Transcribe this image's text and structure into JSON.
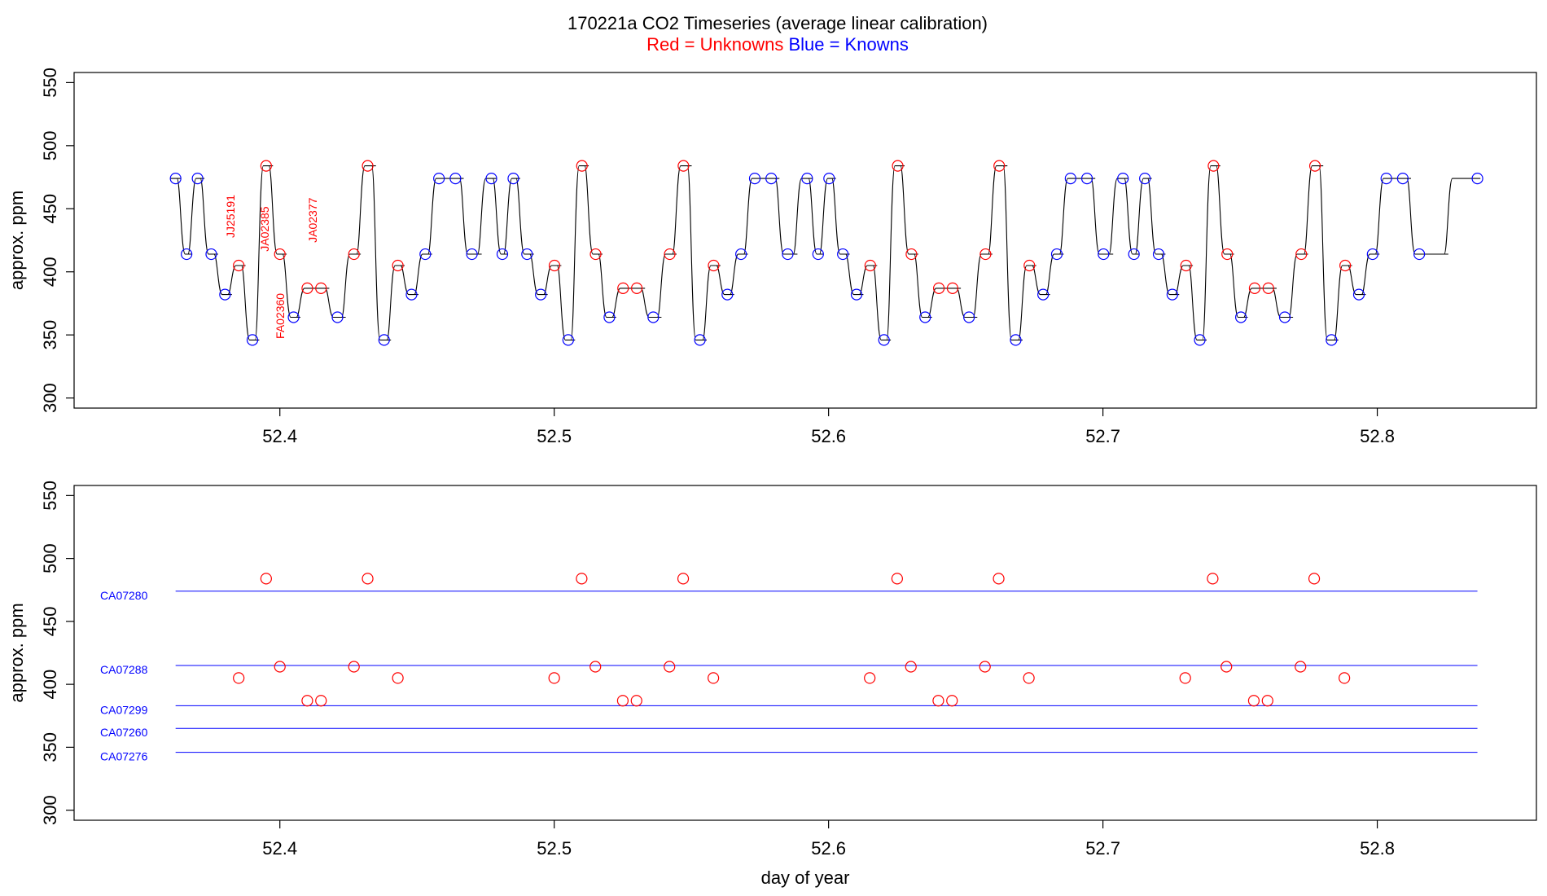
{
  "title": {
    "main": "170221a   CO2 Timeseries (average linear calibration)",
    "unknowns_text": "Red = Unknowns",
    "knowns_text": "Blue = Knowns"
  },
  "colors": {
    "unknown": "#ff0000",
    "known": "#0000ff",
    "trace": "#000000",
    "axis": "#000000"
  },
  "chart_data": [
    {
      "type": "line",
      "name": "top-panel-timeseries",
      "ylabel": "approx. ppm",
      "xlabel": "",
      "xlim": [
        52.325,
        52.858
      ],
      "ylim": [
        292,
        558
      ],
      "x_ticks": [
        52.4,
        52.5,
        52.6,
        52.7,
        52.8
      ],
      "x_tick_labels": [
        "52.4",
        "52.5",
        "52.6",
        "52.7",
        "52.8"
      ],
      "y_ticks": [
        300,
        350,
        400,
        450,
        500,
        550
      ],
      "y_tick_labels": [
        "300",
        "350",
        "400",
        "450",
        "500",
        "550"
      ],
      "grid": false,
      "cycle_period_days": 0.1151,
      "cycle_start_day": 52.362,
      "cycle_count": 4,
      "cycle_steps": [
        {
          "dx": 0.0,
          "ppm": 474,
          "kind": "known"
        },
        {
          "dx": 0.004,
          "ppm": 414,
          "kind": "known"
        },
        {
          "dx": 0.008,
          "ppm": 474,
          "kind": "known"
        },
        {
          "dx": 0.013,
          "ppm": 414,
          "kind": "known"
        },
        {
          "dx": 0.018,
          "ppm": 382,
          "kind": "known"
        },
        {
          "dx": 0.023,
          "ppm": 405,
          "kind": "unknown"
        },
        {
          "dx": 0.028,
          "ppm": 346,
          "kind": "known"
        },
        {
          "dx": 0.033,
          "ppm": 484,
          "kind": "unknown"
        },
        {
          "dx": 0.038,
          "ppm": 414,
          "kind": "unknown"
        },
        {
          "dx": 0.043,
          "ppm": 364,
          "kind": "known"
        },
        {
          "dx": 0.048,
          "ppm": 387,
          "kind": "unknown"
        },
        {
          "dx": 0.053,
          "ppm": 387,
          "kind": "unknown"
        },
        {
          "dx": 0.059,
          "ppm": 364,
          "kind": "known"
        },
        {
          "dx": 0.065,
          "ppm": 414,
          "kind": "unknown"
        },
        {
          "dx": 0.07,
          "ppm": 484,
          "kind": "unknown"
        },
        {
          "dx": 0.076,
          "ppm": 346,
          "kind": "known"
        },
        {
          "dx": 0.081,
          "ppm": 405,
          "kind": "unknown"
        },
        {
          "dx": 0.086,
          "ppm": 382,
          "kind": "known"
        },
        {
          "dx": 0.091,
          "ppm": 414,
          "kind": "known"
        },
        {
          "dx": 0.096,
          "ppm": 474,
          "kind": "known"
        },
        {
          "dx": 0.102,
          "ppm": 474,
          "kind": "known"
        },
        {
          "dx": 0.108,
          "ppm": 414,
          "kind": "known"
        }
      ],
      "final_point": {
        "day": 52.8365,
        "ppm": 474,
        "kind": "known"
      },
      "sample_labels": [
        {
          "text": "JJ25191",
          "day": 52.3835,
          "ppm": 444
        },
        {
          "text": "JA02385",
          "day": 52.396,
          "ppm": 434
        },
        {
          "text": "FA02360",
          "day": 52.4015,
          "ppm": 365
        },
        {
          "text": "JA02377",
          "day": 52.4135,
          "ppm": 441
        }
      ]
    },
    {
      "type": "scatter",
      "name": "bottom-panel-calibration",
      "ylabel": "approx. ppm",
      "xlabel": "day of year",
      "xlim": [
        52.325,
        52.858
      ],
      "ylim": [
        292,
        558
      ],
      "x_ticks": [
        52.4,
        52.5,
        52.6,
        52.7,
        52.8
      ],
      "x_tick_labels": [
        "52.4",
        "52.5",
        "52.6",
        "52.7",
        "52.8"
      ],
      "y_ticks": [
        300,
        350,
        400,
        450,
        500,
        550
      ],
      "y_tick_labels": [
        "300",
        "350",
        "400",
        "450",
        "500",
        "550"
      ],
      "grid": false,
      "standards": [
        {
          "name": "CA07280",
          "ppm": 474,
          "from_day": 52.362,
          "to_day": 52.8365
        },
        {
          "name": "CA07288",
          "ppm": 415,
          "from_day": 52.362,
          "to_day": 52.8365
        },
        {
          "name": "CA07299",
          "ppm": 383,
          "from_day": 52.362,
          "to_day": 52.8365
        },
        {
          "name": "CA07260",
          "ppm": 365,
          "from_day": 52.362,
          "to_day": 52.8365
        },
        {
          "name": "CA07276",
          "ppm": 346,
          "from_day": 52.362,
          "to_day": 52.8365
        }
      ],
      "unknowns": [
        {
          "day": 52.385,
          "ppm": 405
        },
        {
          "day": 52.395,
          "ppm": 484
        },
        {
          "day": 52.4,
          "ppm": 414
        },
        {
          "day": 52.41,
          "ppm": 387
        },
        {
          "day": 52.415,
          "ppm": 387
        },
        {
          "day": 52.427,
          "ppm": 414
        },
        {
          "day": 52.432,
          "ppm": 484
        },
        {
          "day": 52.443,
          "ppm": 405
        },
        {
          "day": 52.5,
          "ppm": 405
        },
        {
          "day": 52.51,
          "ppm": 484
        },
        {
          "day": 52.515,
          "ppm": 414
        },
        {
          "day": 52.525,
          "ppm": 387
        },
        {
          "day": 52.53,
          "ppm": 387
        },
        {
          "day": 52.542,
          "ppm": 414
        },
        {
          "day": 52.547,
          "ppm": 484
        },
        {
          "day": 52.558,
          "ppm": 405
        },
        {
          "day": 52.615,
          "ppm": 405
        },
        {
          "day": 52.625,
          "ppm": 484
        },
        {
          "day": 52.63,
          "ppm": 414
        },
        {
          "day": 52.64,
          "ppm": 387
        },
        {
          "day": 52.645,
          "ppm": 387
        },
        {
          "day": 52.657,
          "ppm": 414
        },
        {
          "day": 52.662,
          "ppm": 484
        },
        {
          "day": 52.673,
          "ppm": 405
        },
        {
          "day": 52.73,
          "ppm": 405
        },
        {
          "day": 52.74,
          "ppm": 484
        },
        {
          "day": 52.745,
          "ppm": 414
        },
        {
          "day": 52.755,
          "ppm": 387
        },
        {
          "day": 52.76,
          "ppm": 387
        },
        {
          "day": 52.772,
          "ppm": 414
        },
        {
          "day": 52.777,
          "ppm": 484
        },
        {
          "day": 52.788,
          "ppm": 405
        }
      ]
    }
  ]
}
